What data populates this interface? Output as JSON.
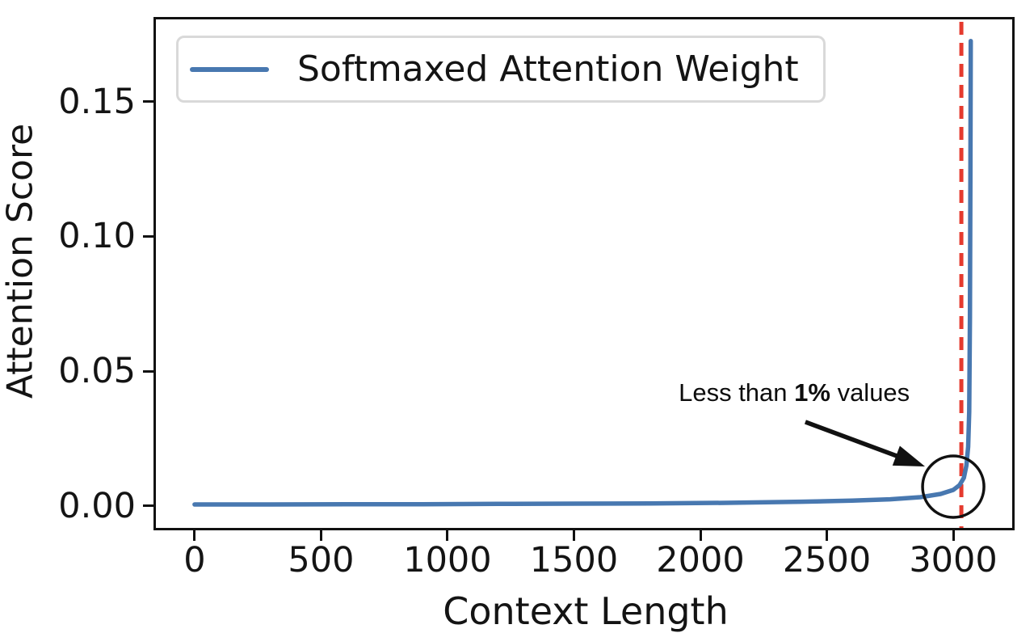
{
  "chart_data": {
    "type": "line",
    "title": "",
    "xlabel": "Context Length",
    "ylabel": "Attention Score",
    "xlim": [
      -153,
      3233
    ],
    "ylim": [
      -0.0081,
      0.1805
    ],
    "grid": false,
    "x_ticks": [
      0,
      500,
      1000,
      1500,
      2000,
      2500,
      3000
    ],
    "x_tick_labels": [
      "0",
      "500",
      "1000",
      "1500",
      "2000",
      "2500",
      "3000"
    ],
    "y_ticks": [
      0,
      0.05,
      0.1,
      0.15
    ],
    "y_tick_labels": [
      "0.00",
      "0.05",
      "0.10",
      "0.15"
    ],
    "legend": {
      "position": "upper left",
      "label": "Softmaxed Attention Weight"
    },
    "series": [
      {
        "name": "Softmaxed Attention Weight",
        "color": "#4878b0",
        "style": "solid",
        "width": 5.5,
        "points": [
          [
            0,
            0.0006
          ],
          [
            300,
            0.0006
          ],
          [
            600,
            0.0007
          ],
          [
            900,
            0.0007
          ],
          [
            1200,
            0.0008
          ],
          [
            1500,
            0.0009
          ],
          [
            1800,
            0.001
          ],
          [
            2100,
            0.0012
          ],
          [
            2400,
            0.0016
          ],
          [
            2600,
            0.002
          ],
          [
            2750,
            0.0025
          ],
          [
            2870,
            0.0033
          ],
          [
            2950,
            0.0045
          ],
          [
            3000,
            0.006
          ],
          [
            3025,
            0.0078
          ],
          [
            3042,
            0.0105
          ],
          [
            3052,
            0.015
          ],
          [
            3059,
            0.022
          ],
          [
            3063,
            0.035
          ],
          [
            3066,
            0.07
          ],
          [
            3068,
            0.125
          ],
          [
            3069,
            0.1725
          ]
        ]
      }
    ],
    "vline": {
      "x": 3032,
      "color": "#e53a2e",
      "style": "dashed",
      "width": 5,
      "dash": "16 10"
    },
    "annotations": {
      "label": {
        "parts": [
          {
            "text": "Less than ",
            "bold": false
          },
          {
            "text": "1%",
            "bold": true
          },
          {
            "text": " values",
            "bold": false
          }
        ],
        "x": 2371,
        "y": 0.042
      },
      "arrow": {
        "tail": [
          2415,
          0.0312
        ],
        "tip": [
          2888,
          0.0147
        ],
        "color": "#111111",
        "width": 5.5
      },
      "circle": {
        "x": 3000,
        "y": 0.0072,
        "radius_px": 38,
        "color": "#111111",
        "stroke_width": 3.5
      }
    }
  }
}
